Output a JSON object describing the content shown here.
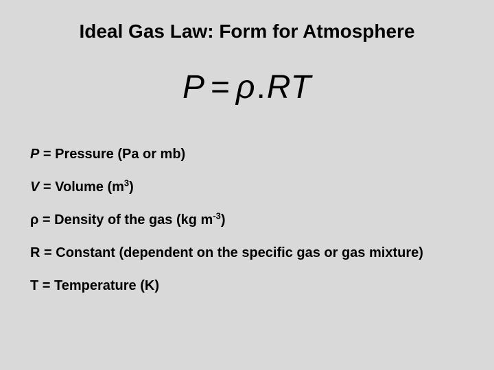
{
  "background_color": "#d9d9d9",
  "text_color": "#000000",
  "title": {
    "text": "Ideal Gas Law: Form for Atmosphere",
    "fontsize": 28,
    "fontweight": "bold"
  },
  "equation": {
    "P": "P",
    "equals": "=",
    "rho": "ρ",
    "dot": ".",
    "R": "R",
    "T": "T",
    "fontsize": 48,
    "font_style": "italic"
  },
  "definitions": [
    {
      "symbol": "P",
      "symbol_italic": true,
      "eq": " = ",
      "desc_pre": "Pressure (Pa or mb)",
      "sup": "",
      "desc_post": ""
    },
    {
      "symbol": "V",
      "symbol_italic": true,
      "eq": " = ",
      "desc_pre": "Volume (m",
      "sup": "3",
      "desc_post": ")"
    },
    {
      "symbol": "ρ",
      "symbol_italic": false,
      "eq": " = ",
      "desc_pre": "Density of the gas (kg m",
      "sup": "-3",
      "desc_post": ")"
    },
    {
      "symbol": "R",
      "symbol_italic": false,
      "eq": " = ",
      "desc_pre": "Constant (dependent on the specific gas or gas mixture)",
      "sup": "",
      "desc_post": ""
    },
    {
      "symbol": "T",
      "symbol_italic": false,
      "eq": " = ",
      "desc_pre": "Temperature (K)",
      "sup": "",
      "desc_post": ""
    }
  ],
  "def_fontsize": 20,
  "def_fontweight": "bold"
}
